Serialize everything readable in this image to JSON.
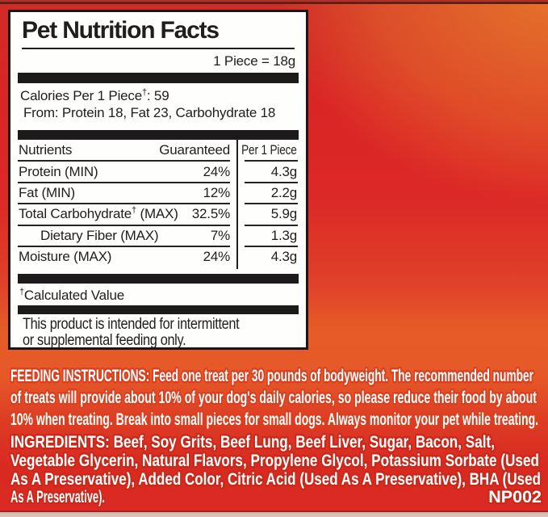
{
  "label": {
    "title": "Pet Nutrition Facts",
    "serving": "1 Piece = 18g",
    "calories": {
      "pre": "Calories Per 1 Piece",
      "dagger": "†",
      "post": ": 59",
      "from": "From: Protein 18, Fat 23, Carbohydrate 18"
    },
    "table": {
      "headers": {
        "nutrients": "Nutrients",
        "guaranteed": "Guaranteed",
        "per_piece": "Per 1 Piece"
      },
      "rows": [
        {
          "name": "Protein (MIN)",
          "guaranteed": "24%",
          "per_piece": "4.3g"
        },
        {
          "name": "Fat (MIN)",
          "guaranteed": "12%",
          "per_piece": "2.2g"
        },
        {
          "name": "Total Carbohydrate",
          "dagger": "†",
          "suffix": " (MAX)",
          "guaranteed": "32.5%",
          "per_piece": "5.9g"
        },
        {
          "name": "Dietary Fiber (MAX)",
          "guaranteed": "7%",
          "per_piece": "1.3g"
        },
        {
          "name": "Moisture (MAX)",
          "guaranteed": "24%",
          "per_piece": "4.3g"
        }
      ]
    },
    "footnote": {
      "dagger": "†",
      "text": "Calculated Value"
    },
    "note": [
      "This product is intended for intermittent",
      "or supplemental feeding only."
    ]
  },
  "feeding": {
    "lines": [
      "FEEDING INSTRUCTIONS: Feed one treat per 30 pounds of bodyweight. The recommended number",
      "of treats will provide about 10% of your dog's daily calories, so please reduce their food by about",
      "10% when treating. Break into small pieces for small dogs. Always monitor your pet while treating."
    ]
  },
  "ingredients": {
    "lines": [
      "INGREDIENTS: Beef, Soy Grits, Beef Lung, Beef Liver, Sugar, Bacon, Salt,",
      "Vegetable Glycerin, Natural Flavors, Propylene Glycol, Potassium Sorbate (Used",
      "As A Preservative), Added Color, Citric Acid (Used As A Preservative), BHA (Used",
      "As A Preservative)."
    ],
    "code": "NP002"
  },
  "colors": {
    "background_red": "#da2a23",
    "background_orange": "#e6772b",
    "label_bg": "#fefefc",
    "label_ink": "#211d1e",
    "outlined_text_fill": "#ffffff",
    "feeding_halo": "#d84020",
    "ingredients_halo": "#c9291b"
  }
}
